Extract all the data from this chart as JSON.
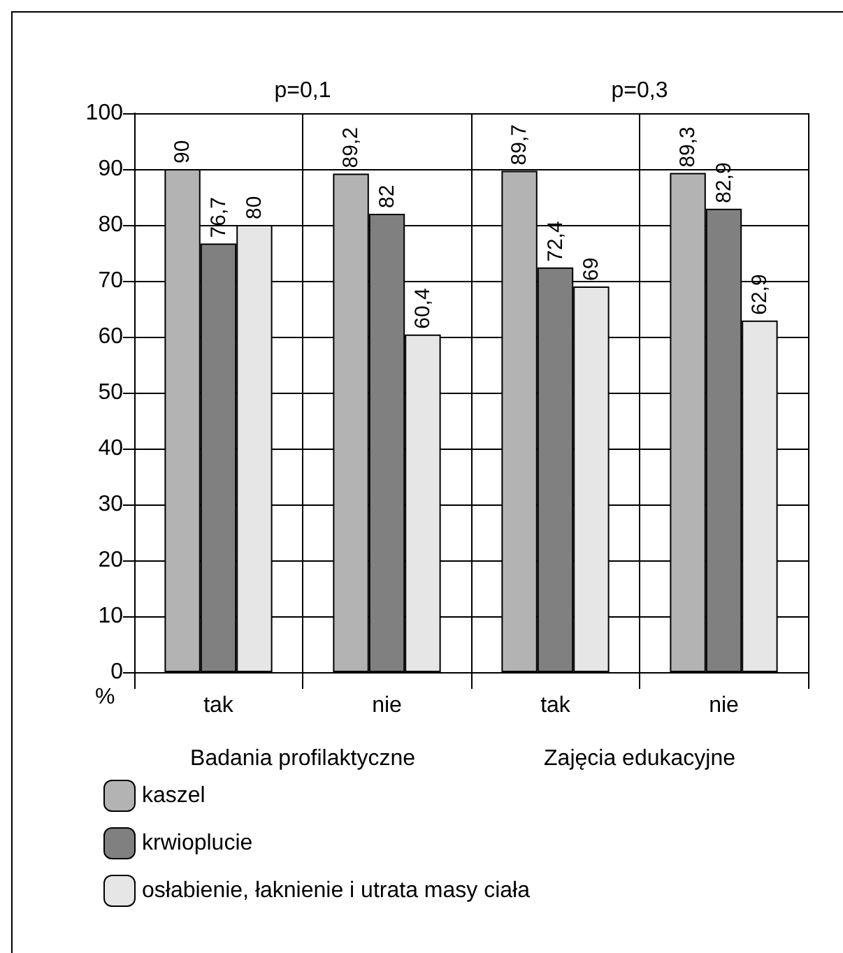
{
  "chart_data": {
    "type": "bar",
    "categories": [
      "tak",
      "nie",
      "tak",
      "nie"
    ],
    "ylabel": "%",
    "annotations": [
      "p=0,1",
      "p=0,3",
      "Badania profilaktyczne",
      "Zajęcia edukacyjne"
    ],
    "series": [
      {
        "name": "kaszel",
        "color": "#b3b3b3",
        "values": [
          90,
          89.2,
          89.7,
          89.3
        ],
        "value_labels": [
          "90",
          "89,2",
          "89,7",
          "89,3"
        ]
      },
      {
        "name": "krwioplucie",
        "color": "#808080",
        "values": [
          76.7,
          82,
          72.4,
          82.9
        ],
        "value_labels": [
          "76,7",
          "82",
          "72,4",
          "82,9"
        ]
      },
      {
        "name": "osłabienie, łaknienie i utrata masy ciała",
        "color": "#e6e6e6",
        "values": [
          80,
          60.4,
          69,
          62.9
        ],
        "value_labels": [
          "80",
          "60,4",
          "69",
          "62,9"
        ]
      }
    ],
    "ylim": [
      0,
      100
    ],
    "yticks": [
      0,
      10,
      20,
      30,
      40,
      50,
      60,
      70,
      80,
      90,
      100
    ],
    "grid": true,
    "legend": "bottom left"
  }
}
